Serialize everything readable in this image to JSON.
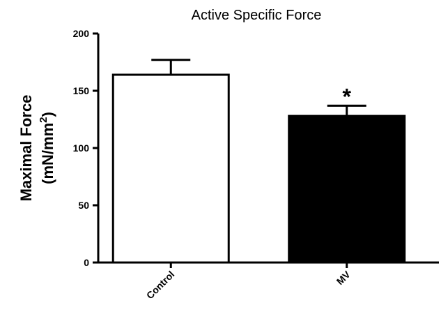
{
  "chart_data": {
    "type": "bar",
    "title": "Active Specific Force",
    "ylabel_line1": "Maximal Force",
    "ylabel_line2": "(mN/mm",
    "ylabel_sup": "2",
    "ylabel_close": ")",
    "xlabel": "",
    "ylim": [
      0,
      200
    ],
    "yticks": [
      0,
      50,
      100,
      150,
      200
    ],
    "categories": [
      "Control",
      "MV"
    ],
    "values": [
      164,
      128
    ],
    "errors": [
      13,
      9
    ],
    "fills": [
      "#ffffff",
      "#000000"
    ],
    "annotations": [
      {
        "category": "MV",
        "text": "*"
      }
    ],
    "grid": false,
    "legend": "none"
  }
}
